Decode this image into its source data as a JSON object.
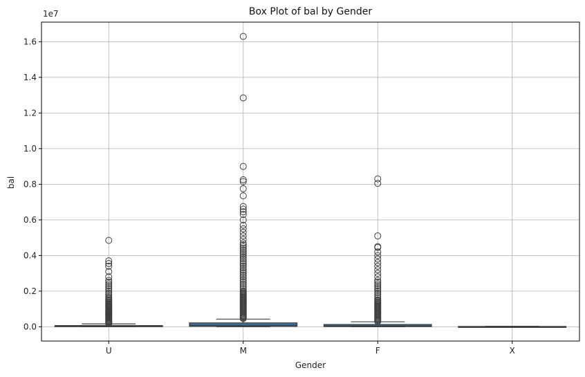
{
  "chart_data": {
    "type": "box",
    "title": "Box Plot of bal by Gender",
    "xlabel": "Gender",
    "ylabel": "bal",
    "y_scale_label": "1e7",
    "ylim": [
      -800000,
      17100000
    ],
    "yticks": [
      0,
      2000000,
      4000000,
      6000000,
      8000000,
      10000000,
      12000000,
      14000000,
      16000000
    ],
    "ytick_labels": [
      "0.0",
      "0.2",
      "0.4",
      "0.6",
      "0.8",
      "1.0",
      "1.2",
      "1.4",
      "1.6"
    ],
    "grid": true,
    "box_color": "#3a75a8",
    "categories": [
      "U",
      "M",
      "F",
      "X"
    ],
    "boxes": [
      {
        "category": "U",
        "q1": 5000,
        "median": 25000,
        "q3": 70000,
        "whisker_low": 0,
        "whisker_high": 160000,
        "outliers": [
          180000,
          220000,
          260000,
          300000,
          340000,
          380000,
          420000,
          460000,
          500000,
          540000,
          580000,
          620000,
          660000,
          700000,
          740000,
          780000,
          820000,
          860000,
          900000,
          940000,
          980000,
          1020000,
          1060000,
          1100000,
          1140000,
          1180000,
          1220000,
          1260000,
          1300000,
          1350000,
          1400000,
          1450000,
          1500000,
          1560000,
          1620000,
          1700000,
          1800000,
          1900000,
          2000000,
          2100000,
          2200000,
          2300000,
          2400000,
          2500000,
          2600000,
          2800000,
          3100000,
          3400000,
          3550000,
          3700000,
          4850000
        ]
      },
      {
        "category": "M",
        "q1": 20000,
        "median": 80000,
        "q3": 220000,
        "whisker_low": 0,
        "whisker_high": 430000,
        "outliers": [
          460000,
          500000,
          550000,
          600000,
          650000,
          700000,
          750000,
          800000,
          850000,
          900000,
          950000,
          1000000,
          1050000,
          1100000,
          1150000,
          1200000,
          1250000,
          1300000,
          1350000,
          1400000,
          1450000,
          1500000,
          1550000,
          1600000,
          1650000,
          1700000,
          1750000,
          1800000,
          1850000,
          1900000,
          1950000,
          2000000,
          2100000,
          2200000,
          2300000,
          2400000,
          2500000,
          2600000,
          2700000,
          2800000,
          2900000,
          3000000,
          3100000,
          3200000,
          3300000,
          3400000,
          3500000,
          3600000,
          3700000,
          3800000,
          3900000,
          4000000,
          4100000,
          4200000,
          4300000,
          4400000,
          4500000,
          4600000,
          4700000,
          4900000,
          5100000,
          5300000,
          5500000,
          5700000,
          6000000,
          6300000,
          6450000,
          6600000,
          6750000,
          7350000,
          7750000,
          8150000,
          8250000,
          9000000,
          12850000,
          16300000
        ]
      },
      {
        "category": "F",
        "q1": 10000,
        "median": 50000,
        "q3": 130000,
        "whisker_low": 0,
        "whisker_high": 280000,
        "outliers": [
          300000,
          340000,
          380000,
          420000,
          460000,
          500000,
          550000,
          600000,
          650000,
          700000,
          750000,
          800000,
          850000,
          900000,
          950000,
          1000000,
          1050000,
          1100000,
          1150000,
          1200000,
          1250000,
          1300000,
          1350000,
          1400000,
          1450000,
          1500000,
          1600000,
          1700000,
          1800000,
          1900000,
          2000000,
          2100000,
          2200000,
          2300000,
          2400000,
          2500000,
          2600000,
          2800000,
          3000000,
          3200000,
          3400000,
          3600000,
          3800000,
          4000000,
          4200000,
          4450000,
          4500000,
          5100000,
          8050000,
          8300000
        ]
      },
      {
        "category": "X",
        "q1": 0,
        "median": 5000,
        "q3": 20000,
        "whisker_low": 0,
        "whisker_high": 30000,
        "outliers": []
      }
    ]
  }
}
